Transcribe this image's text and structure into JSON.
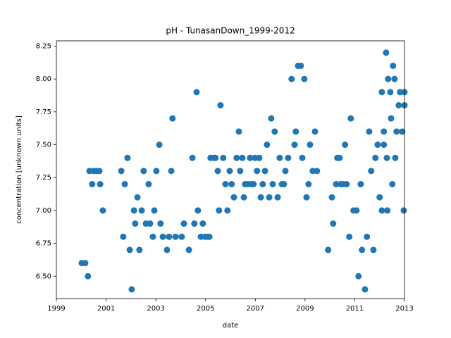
{
  "chart_data": {
    "type": "scatter",
    "title": "pH - TunasanDown_1999-2012",
    "xlabel": "date",
    "ylabel": "concentration [unknown units]",
    "xlim": [
      1999,
      2013
    ],
    "xticks": [
      1999,
      2001,
      2003,
      2005,
      2007,
      2009,
      2011,
      2013
    ],
    "ylim": [
      6.33,
      8.29
    ],
    "yticks": [
      {
        "value": 6.5,
        "label": "6.50"
      },
      {
        "value": 6.75,
        "label": "6.75"
      },
      {
        "value": 7.0,
        "label": "7.00"
      },
      {
        "value": 7.25,
        "label": "7.25"
      },
      {
        "value": 7.5,
        "label": "7.50"
      },
      {
        "value": 7.75,
        "label": "7.75"
      },
      {
        "value": 8.0,
        "label": "8.00"
      },
      {
        "value": 8.25,
        "label": "8.25"
      }
    ],
    "x": [
      2000.02,
      2000.16,
      2000.27,
      2000.33,
      2000.44,
      2000.5,
      2000.61,
      2000.73,
      2000.76,
      2000.87,
      2001.61,
      2001.69,
      2001.75,
      2001.86,
      2001.95,
      2002.03,
      2002.12,
      2002.17,
      2002.26,
      2002.34,
      2002.43,
      2002.51,
      2002.6,
      2002.71,
      2002.77,
      2002.88,
      2002.94,
      2003.02,
      2003.14,
      2003.19,
      2003.28,
      2003.45,
      2003.53,
      2003.62,
      2003.67,
      2003.79,
      2004.04,
      2004.13,
      2004.33,
      2004.47,
      2004.55,
      2004.64,
      2004.69,
      2004.81,
      2004.89,
      2004.98,
      2005.09,
      2005.15,
      2005.2,
      2005.32,
      2005.4,
      2005.49,
      2005.54,
      2005.6,
      2005.71,
      2005.8,
      2005.88,
      2005.97,
      2006.05,
      2006.14,
      2006.25,
      2006.34,
      2006.39,
      2006.48,
      2006.54,
      2006.59,
      2006.71,
      2006.79,
      2006.85,
      2006.93,
      2006.99,
      2007.07,
      2007.16,
      2007.22,
      2007.3,
      2007.39,
      2007.47,
      2007.56,
      2007.64,
      2007.7,
      2007.78,
      2007.9,
      2007.98,
      2008.07,
      2008.15,
      2008.21,
      2008.32,
      2008.46,
      2008.58,
      2008.63,
      2008.72,
      2008.83,
      2008.89,
      2008.97,
      2009.06,
      2009.14,
      2009.2,
      2009.31,
      2009.4,
      2009.48,
      2009.93,
      2010.08,
      2010.13,
      2010.25,
      2010.3,
      2010.39,
      2010.44,
      2010.53,
      2010.61,
      2010.67,
      2010.78,
      2010.84,
      2010.95,
      2011.07,
      2011.15,
      2011.24,
      2011.29,
      2011.41,
      2011.49,
      2011.58,
      2011.66,
      2011.75,
      2011.83,
      2011.92,
      2012.0,
      2012.09,
      2012.09,
      2012.17,
      2012.17,
      2012.26,
      2012.29,
      2012.31,
      2012.34,
      2012.43,
      2012.46,
      2012.51,
      2012.54,
      2012.6,
      2012.63,
      2012.68,
      2012.77,
      2012.82,
      2012.91,
      2012.97,
      2013.0,
      2013.0
    ],
    "series": [
      {
        "color": "#1f77b4",
        "values": [
          6.6,
          6.6,
          6.5,
          7.3,
          7.2,
          7.3,
          7.3,
          7.3,
          7.2,
          7.0,
          7.3,
          6.8,
          7.2,
          7.4,
          6.7,
          6.4,
          7.0,
          6.9,
          7.1,
          6.7,
          7.0,
          7.3,
          6.9,
          7.2,
          6.9,
          6.8,
          7.0,
          7.3,
          7.5,
          6.9,
          6.8,
          6.7,
          6.8,
          7.3,
          7.7,
          6.8,
          6.8,
          6.9,
          6.7,
          7.4,
          6.9,
          7.9,
          7.0,
          6.8,
          6.9,
          6.8,
          6.8,
          6.8,
          7.4,
          7.4,
          7.4,
          7.3,
          7.0,
          7.8,
          7.4,
          7.2,
          7.0,
          7.3,
          7.2,
          7.1,
          7.4,
          7.6,
          7.3,
          7.4,
          7.1,
          7.2,
          7.2,
          7.4,
          7.2,
          7.2,
          7.4,
          7.3,
          7.4,
          7.1,
          7.2,
          7.3,
          7.5,
          7.1,
          7.7,
          7.2,
          7.6,
          7.1,
          7.4,
          7.2,
          7.2,
          7.3,
          7.4,
          8.0,
          7.5,
          7.6,
          8.1,
          8.1,
          7.4,
          8.0,
          7.1,
          7.2,
          7.5,
          7.3,
          7.6,
          7.3,
          6.7,
          7.1,
          6.9,
          7.2,
          7.4,
          7.4,
          7.2,
          7.2,
          7.5,
          7.2,
          6.8,
          7.7,
          7.0,
          7.0,
          6.5,
          7.2,
          6.7,
          6.4,
          6.8,
          7.6,
          7.3,
          6.7,
          7.4,
          7.5,
          7.1,
          7.9,
          7.0,
          7.5,
          7.6,
          8.2,
          7.4,
          7.0,
          8.0,
          7.9,
          7.7,
          7.2,
          8.1,
          8.0,
          7.4,
          7.6,
          7.8,
          7.9,
          7.6,
          7.0,
          7.8,
          7.9
        ]
      }
    ]
  }
}
